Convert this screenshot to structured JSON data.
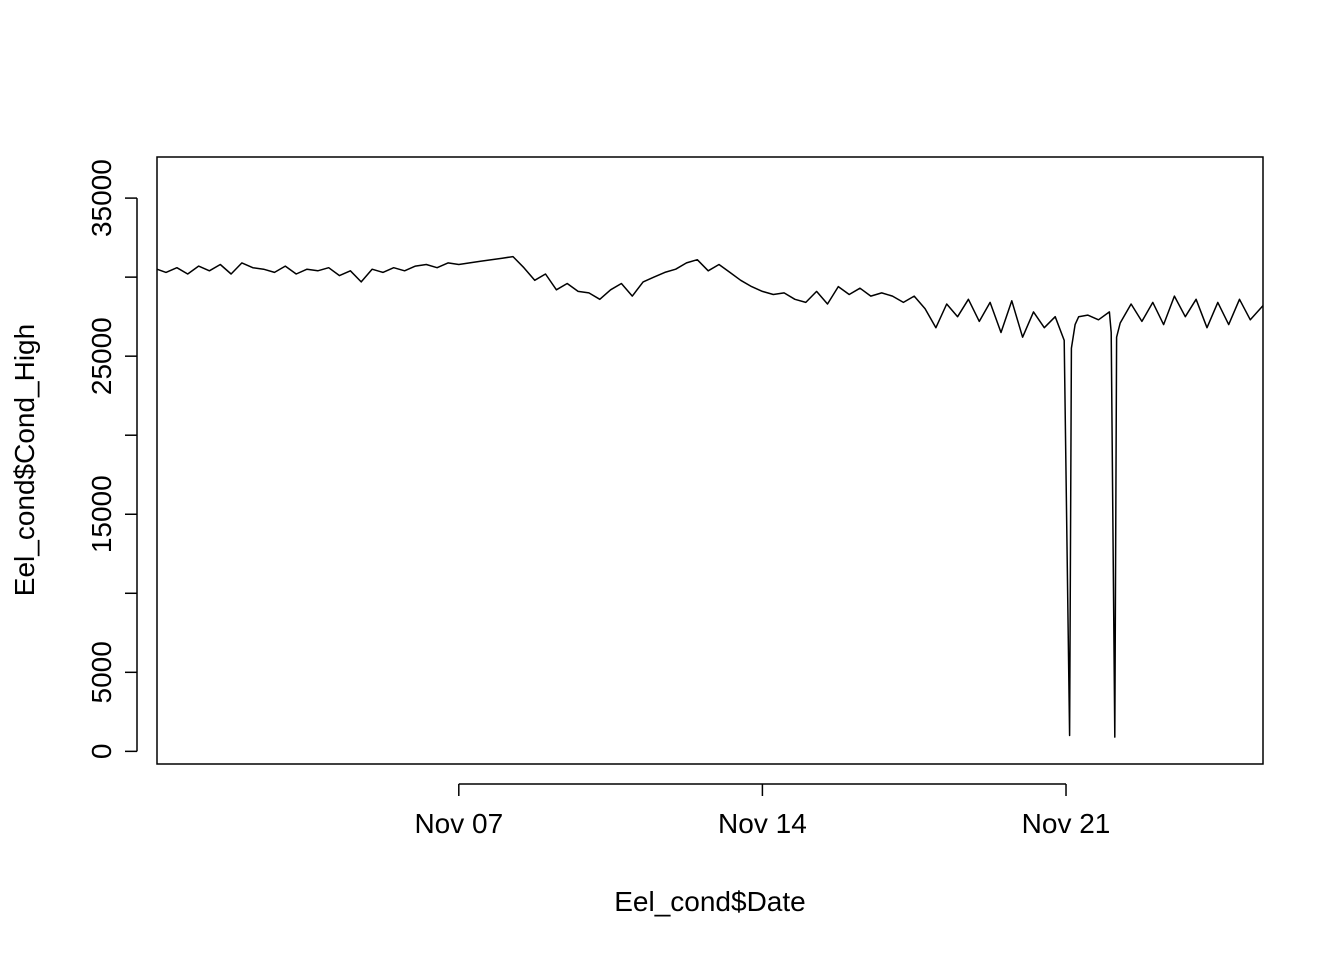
{
  "chart_data": {
    "type": "line",
    "xlabel": "Eel_cond$Date",
    "ylabel": "Eel_cond$Cond_High",
    "xlim": [
      "2018-10-31T01:00",
      "2018-11-25T13:00"
    ],
    "ylim": [
      -800,
      37600
    ],
    "x_ticks": [
      {
        "value": "2018-11-07",
        "label": "Nov 07"
      },
      {
        "value": "2018-11-14",
        "label": "Nov 14"
      },
      {
        "value": "2018-11-21",
        "label": "Nov 21"
      }
    ],
    "y_ticks": [
      {
        "value": 0,
        "label": "0"
      },
      {
        "value": 5000,
        "label": "5000"
      },
      {
        "value": 10000,
        "label": ""
      },
      {
        "value": 15000,
        "label": "15000"
      },
      {
        "value": 20000,
        "label": ""
      },
      {
        "value": 25000,
        "label": "25000"
      },
      {
        "value": 30000,
        "label": ""
      },
      {
        "value": 35000,
        "label": "35000"
      }
    ],
    "line_color": "#000000",
    "series": [
      {
        "x": [
          "2018-10-31T01:00",
          "2018-10-31T06:00",
          "2018-10-31T12:00",
          "2018-10-31T18:00",
          "2018-11-01T00:00",
          "2018-11-01T06:00",
          "2018-11-01T12:00",
          "2018-11-01T18:00",
          "2018-11-02T00:00",
          "2018-11-02T06:00",
          "2018-11-02T12:00",
          "2018-11-02T18:00",
          "2018-11-03T00:00",
          "2018-11-03T06:00",
          "2018-11-03T12:00",
          "2018-11-03T18:00",
          "2018-11-04T00:00",
          "2018-11-04T06:00",
          "2018-11-04T12:00",
          "2018-11-04T18:00",
          "2018-11-05T00:00",
          "2018-11-05T06:00",
          "2018-11-05T12:00",
          "2018-11-05T18:00",
          "2018-11-06T00:00",
          "2018-11-06T06:00",
          "2018-11-06T12:00",
          "2018-11-06T18:00",
          "2018-11-07T00:00",
          "2018-11-07T06:00",
          "2018-11-07T12:00",
          "2018-11-07T18:00",
          "2018-11-08T00:00",
          "2018-11-08T06:00",
          "2018-11-08T12:00",
          "2018-11-08T18:00",
          "2018-11-09T00:00",
          "2018-11-09T06:00",
          "2018-11-09T12:00",
          "2018-11-09T18:00",
          "2018-11-10T00:00",
          "2018-11-10T06:00",
          "2018-11-10T12:00",
          "2018-11-10T18:00",
          "2018-11-11T00:00",
          "2018-11-11T06:00",
          "2018-11-11T12:00",
          "2018-11-11T18:00",
          "2018-11-12T00:00",
          "2018-11-12T06:00",
          "2018-11-12T12:00",
          "2018-11-12T18:00",
          "2018-11-13T00:00",
          "2018-11-13T06:00",
          "2018-11-13T12:00",
          "2018-11-13T18:00",
          "2018-11-14T00:00",
          "2018-11-14T06:00",
          "2018-11-14T12:00",
          "2018-11-14T18:00",
          "2018-11-15T00:00",
          "2018-11-15T06:00",
          "2018-11-15T12:00",
          "2018-11-15T18:00",
          "2018-11-16T00:00",
          "2018-11-16T06:00",
          "2018-11-16T12:00",
          "2018-11-16T18:00",
          "2018-11-17T00:00",
          "2018-11-17T06:00",
          "2018-11-17T12:00",
          "2018-11-17T18:00",
          "2018-11-18T00:00",
          "2018-11-18T06:00",
          "2018-11-18T12:00",
          "2018-11-18T18:00",
          "2018-11-19T00:00",
          "2018-11-19T06:00",
          "2018-11-19T12:00",
          "2018-11-19T18:00",
          "2018-11-20T00:00",
          "2018-11-20T06:00",
          "2018-11-20T12:00",
          "2018-11-20T18:00",
          "2018-11-20T23:00",
          "2018-11-21T02:00",
          "2018-11-21T03:00",
          "2018-11-21T05:00",
          "2018-11-21T07:00",
          "2018-11-21T12:00",
          "2018-11-21T18:00",
          "2018-11-22T00:00",
          "2018-11-22T01:00",
          "2018-11-22T03:00",
          "2018-11-22T04:00",
          "2018-11-22T06:00",
          "2018-11-22T12:00",
          "2018-11-22T18:00",
          "2018-11-23T00:00",
          "2018-11-23T06:00",
          "2018-11-23T12:00",
          "2018-11-23T18:00",
          "2018-11-24T00:00",
          "2018-11-24T06:00",
          "2018-11-24T12:00",
          "2018-11-24T18:00",
          "2018-11-25T00:00",
          "2018-11-25T06:00",
          "2018-11-25T13:00"
        ],
        "y": [
          30500,
          30300,
          30600,
          30200,
          30700,
          30400,
          30800,
          30200,
          30900,
          30600,
          30500,
          30300,
          30700,
          30200,
          30500,
          30400,
          30600,
          30100,
          30400,
          29700,
          30500,
          30300,
          30600,
          30400,
          30700,
          30800,
          30600,
          30900,
          30800,
          30900,
          31000,
          31100,
          31200,
          31300,
          30600,
          29800,
          30200,
          29200,
          29600,
          29100,
          29000,
          28600,
          29200,
          29600,
          28800,
          29700,
          30000,
          30300,
          30500,
          30900,
          31100,
          30400,
          30800,
          30300,
          29800,
          29400,
          29100,
          28900,
          29000,
          28600,
          28400,
          29100,
          28300,
          29400,
          28900,
          29300,
          28800,
          29000,
          28800,
          28400,
          28800,
          28000,
          26800,
          28300,
          27500,
          28600,
          27200,
          28400,
          26500,
          28500,
          26200,
          27800,
          26800,
          27500,
          26000,
          1000,
          25500,
          27000,
          27500,
          27600,
          27300,
          27800,
          26500,
          900,
          26200,
          27100,
          28300,
          27200,
          28400,
          27000,
          28800,
          27500,
          28600,
          26800,
          28400,
          27000,
          28600,
          27300,
          28200
        ]
      }
    ]
  }
}
